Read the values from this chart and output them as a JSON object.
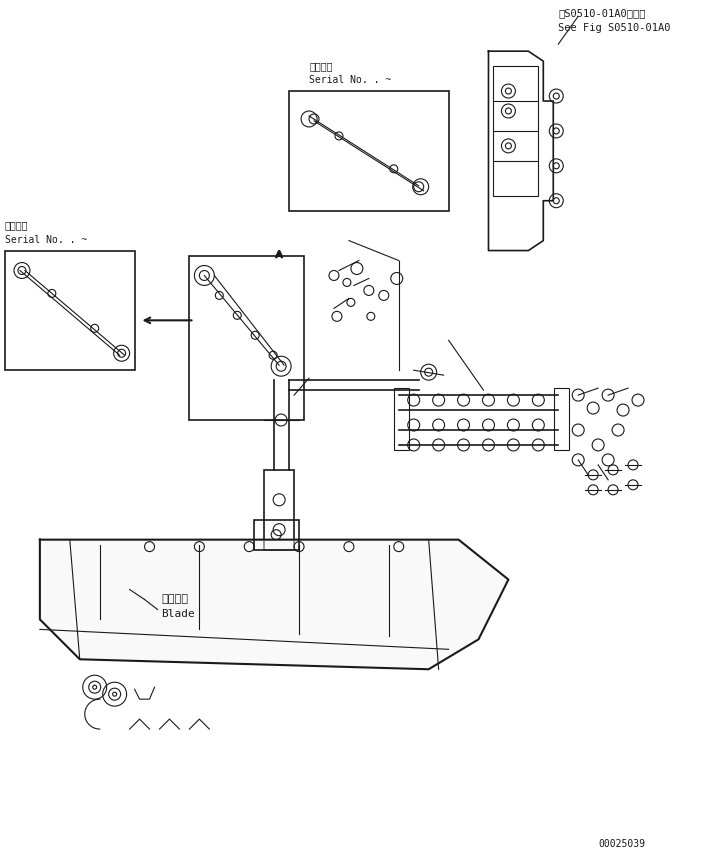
{
  "bg_color": "#ffffff",
  "fig_width": 7.01,
  "fig_height": 8.59,
  "dpi": 100,
  "title_text1": "第S0510-01A0図参照",
  "title_text2": "See Fig S0510-01A0",
  "serial_no_top_label1": "適用号機",
  "serial_no_top_label2": "Serial No.",
  "serial_no_top_range": ". ~",
  "serial_no_left_label1": "適用号機",
  "serial_no_left_label2": "Serial No.",
  "serial_no_left_range": ". ~",
  "blade_label1": "ブレード",
  "blade_label2": "Blade",
  "part_number": "00025039"
}
